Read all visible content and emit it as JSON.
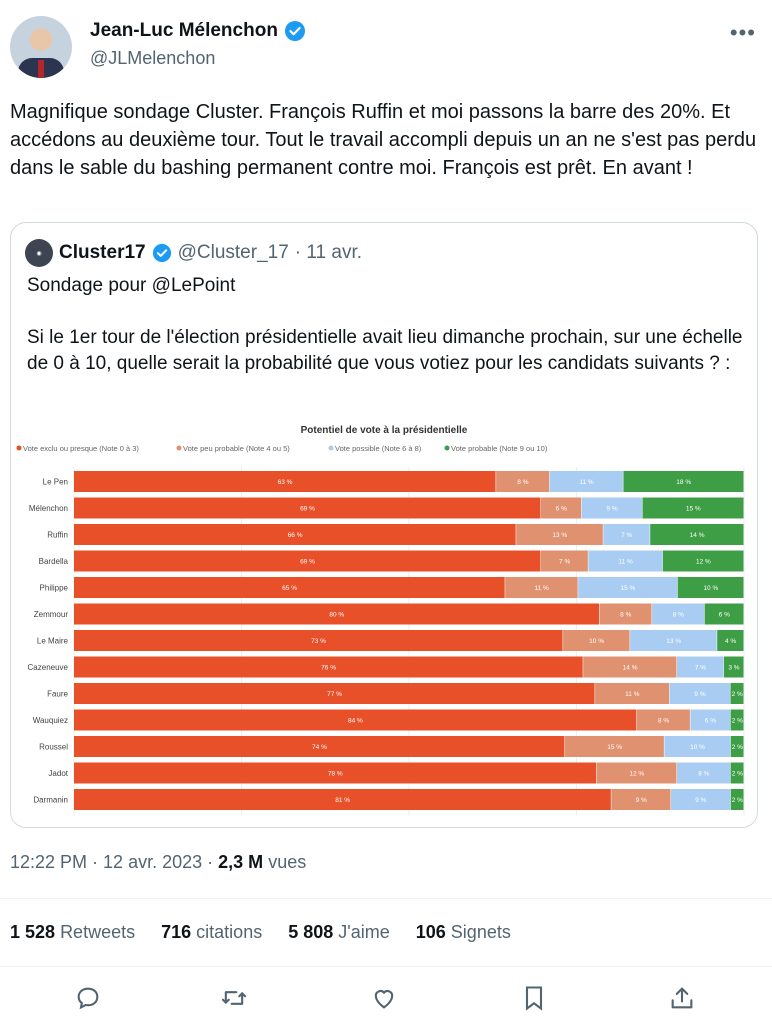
{
  "author": {
    "name": "Jean-Luc Mélenchon",
    "handle": "@JLMelenchon",
    "text": "Magnifique sondage Cluster. François Ruffin et moi passons la barre des 20%. Et accédons au deuxième tour. Tout le travail accompli depuis un an ne s'est pas perdu dans le sable du bashing permanent contre moi. François est prêt. En avant !"
  },
  "quote": {
    "name": "Cluster17",
    "handle": "@Cluster_17",
    "date": "· 11 avr.",
    "line1": "Sondage pour @LePoint",
    "line2": "Si le 1er tour de l'élection présidentielle avait lieu dimanche prochain, sur une échelle de 0 à 10, quelle serait la probabilité que vous votiez pour les candidats suivants ? :"
  },
  "meta": {
    "time": "12:22 PM · 12 avr. 2023 ·",
    "views": "2,3 M",
    "views_label": "vues"
  },
  "stats": [
    {
      "value": "1 528",
      "label": "Retweets"
    },
    {
      "value": "716",
      "label": "citations"
    },
    {
      "value": "5 808",
      "label": "J'aime"
    },
    {
      "value": "106",
      "label": "Signets"
    }
  ],
  "colors": {
    "red": "#e8502a",
    "salmon": "#df9170",
    "lightblue": "#a9cdf2",
    "green": "#3d9e45",
    "verified": "#1d9bf0"
  },
  "chart_data": {
    "type": "bar",
    "stacked": true,
    "orientation": "horizontal",
    "title": "Potentiel de vote à la présidentielle",
    "legend": [
      "Vote exclu ou presque (Note 0 à 3)",
      "Vote peu probable (Note 4 ou 5)",
      "Vote possible (Note 6 à 8)",
      "Vote probable (Note 9 ou 10)"
    ],
    "categories": [
      "Le Pen",
      "Mélenchon",
      "Ruffin",
      "Bardella",
      "Philippe",
      "Zemmour",
      "Le Maire",
      "Cazeneuve",
      "Faure",
      "Wauquiez",
      "Roussel",
      "Jadot",
      "Darmanin"
    ],
    "series": [
      {
        "name": "Vote exclu ou presque (Note 0 à 3)",
        "values": [
          63,
          69,
          66,
          69,
          65,
          80,
          73,
          76,
          77,
          84,
          74,
          78,
          81
        ]
      },
      {
        "name": "Vote peu probable (Note 4 ou 5)",
        "values": [
          8,
          6,
          13,
          7,
          11,
          8,
          10,
          14,
          11,
          8,
          15,
          12,
          9
        ]
      },
      {
        "name": "Vote possible (Note 6 à 8)",
        "values": [
          11,
          9,
          7,
          11,
          15,
          8,
          13,
          7,
          9,
          6,
          10,
          8,
          9
        ]
      },
      {
        "name": "Vote probable (Note 9 ou 10)",
        "values": [
          18,
          15,
          14,
          12,
          10,
          6,
          4,
          3,
          2,
          2,
          2,
          2,
          2
        ]
      }
    ],
    "xlim": [
      0,
      100
    ]
  }
}
